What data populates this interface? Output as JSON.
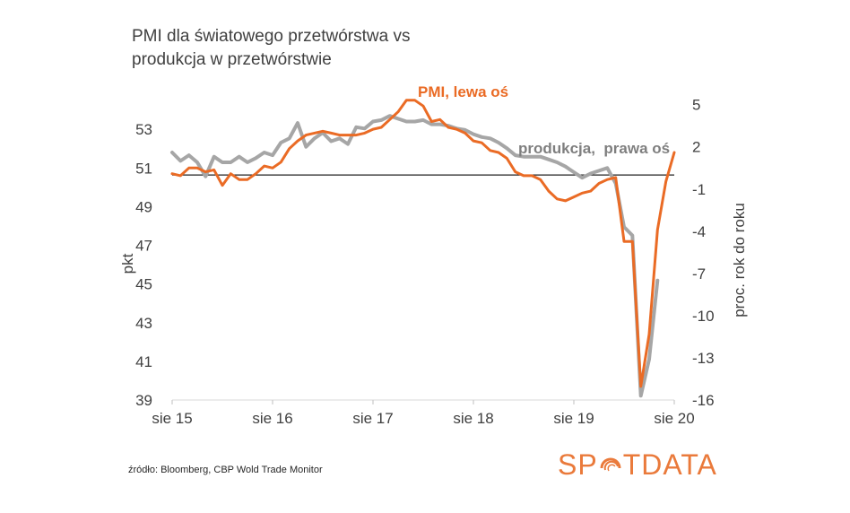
{
  "title": "PMI dla światowego przetwórstwa vs\nprodukcja  w przetwórstwie",
  "source": "źródło: Bloomberg, CBP Wold Trade Monitor",
  "brand": {
    "left": "SP",
    "right": "TDATA"
  },
  "colors": {
    "pmi": "#ea6b25",
    "production": "#a6a6a6",
    "zero_line": "#222222",
    "axis_text": "#404040",
    "brand": "#ea7a3b"
  },
  "chart_data": {
    "type": "line",
    "xlabel": "",
    "ylabel": "pkt",
    "y2label": "proc. rok do roku",
    "x_ticks": [
      "sie 15",
      "sie 16",
      "sie 17",
      "sie 18",
      "sie 19",
      "sie 20"
    ],
    "ylim": [
      39,
      55
    ],
    "y_ticks": [
      39,
      41,
      43,
      45,
      47,
      49,
      51,
      53
    ],
    "y2lim": [
      -16,
      6
    ],
    "y2_ticks": [
      -16,
      -13,
      -10,
      -7,
      -4,
      -1,
      2,
      5
    ],
    "grid": false,
    "series": [
      {
        "name": "PMI, lewa oś",
        "axis": "left",
        "x": [
          "2015-08",
          "2015-09",
          "2015-10",
          "2015-11",
          "2015-12",
          "2016-01",
          "2016-02",
          "2016-03",
          "2016-04",
          "2016-05",
          "2016-06",
          "2016-07",
          "2016-08",
          "2016-09",
          "2016-10",
          "2016-11",
          "2016-12",
          "2017-01",
          "2017-02",
          "2017-03",
          "2017-04",
          "2017-05",
          "2017-06",
          "2017-07",
          "2017-08",
          "2017-09",
          "2017-10",
          "2017-11",
          "2017-12",
          "2018-01",
          "2018-02",
          "2018-03",
          "2018-04",
          "2018-05",
          "2018-06",
          "2018-07",
          "2018-08",
          "2018-09",
          "2018-10",
          "2018-11",
          "2018-12",
          "2019-01",
          "2019-02",
          "2019-03",
          "2019-04",
          "2019-05",
          "2019-06",
          "2019-07",
          "2019-08",
          "2019-09",
          "2019-10",
          "2019-11",
          "2019-12",
          "2020-01",
          "2020-02",
          "2020-03",
          "2020-04",
          "2020-05",
          "2020-06",
          "2020-07",
          "2020-08"
        ],
        "values": [
          50.7,
          50.6,
          51.0,
          51.0,
          50.8,
          50.9,
          50.1,
          50.7,
          50.4,
          50.4,
          50.7,
          51.1,
          51.0,
          51.3,
          52.0,
          52.4,
          52.7,
          52.8,
          52.9,
          52.8,
          52.7,
          52.7,
          52.7,
          52.8,
          53.0,
          53.1,
          53.5,
          53.9,
          54.5,
          54.5,
          54.2,
          53.4,
          53.5,
          53.1,
          53.0,
          52.8,
          52.4,
          52.3,
          51.9,
          51.8,
          51.5,
          50.8,
          50.6,
          50.6,
          50.4,
          49.8,
          49.4,
          49.3,
          49.5,
          49.7,
          49.8,
          50.2,
          50.4,
          50.5,
          47.2,
          47.2,
          39.7,
          42.4,
          47.8,
          50.3,
          51.8
        ]
      },
      {
        "name": "produkcja,  prawa oś",
        "axis": "right",
        "x": [
          "2015-08",
          "2015-09",
          "2015-10",
          "2015-11",
          "2015-12",
          "2016-01",
          "2016-02",
          "2016-03",
          "2016-04",
          "2016-05",
          "2016-06",
          "2016-07",
          "2016-08",
          "2016-09",
          "2016-10",
          "2016-11",
          "2016-12",
          "2017-01",
          "2017-02",
          "2017-03",
          "2017-04",
          "2017-05",
          "2017-06",
          "2017-07",
          "2017-08",
          "2017-09",
          "2017-10",
          "2017-11",
          "2017-12",
          "2018-01",
          "2018-02",
          "2018-03",
          "2018-04",
          "2018-05",
          "2018-06",
          "2018-07",
          "2018-08",
          "2018-09",
          "2018-10",
          "2018-11",
          "2018-12",
          "2019-01",
          "2019-02",
          "2019-03",
          "2019-04",
          "2019-05",
          "2019-06",
          "2019-07",
          "2019-08",
          "2019-09",
          "2019-10",
          "2019-11",
          "2019-12",
          "2020-01",
          "2020-02",
          "2020-03",
          "2020-04",
          "2020-05",
          "2020-06"
        ],
        "values": [
          1.6,
          1.0,
          1.4,
          0.9,
          -0.1,
          1.3,
          0.9,
          0.9,
          1.3,
          0.9,
          1.2,
          1.6,
          1.4,
          2.3,
          2.6,
          3.7,
          2.0,
          2.6,
          3.0,
          2.4,
          2.6,
          2.2,
          3.4,
          3.3,
          3.8,
          3.9,
          4.2,
          4.0,
          3.8,
          3.8,
          3.9,
          3.6,
          3.6,
          3.5,
          3.3,
          3.2,
          2.9,
          2.7,
          2.6,
          2.3,
          1.9,
          1.4,
          1.3,
          1.3,
          1.3,
          1.1,
          0.9,
          0.6,
          0.2,
          -0.2,
          0.1,
          0.3,
          0.5,
          -0.6,
          -3.7,
          -4.3,
          -15.7,
          -13.1,
          -7.5
        ]
      }
    ],
    "annotations": [
      "PMI, lewa oś",
      "produkcja,  prawa oś"
    ]
  }
}
